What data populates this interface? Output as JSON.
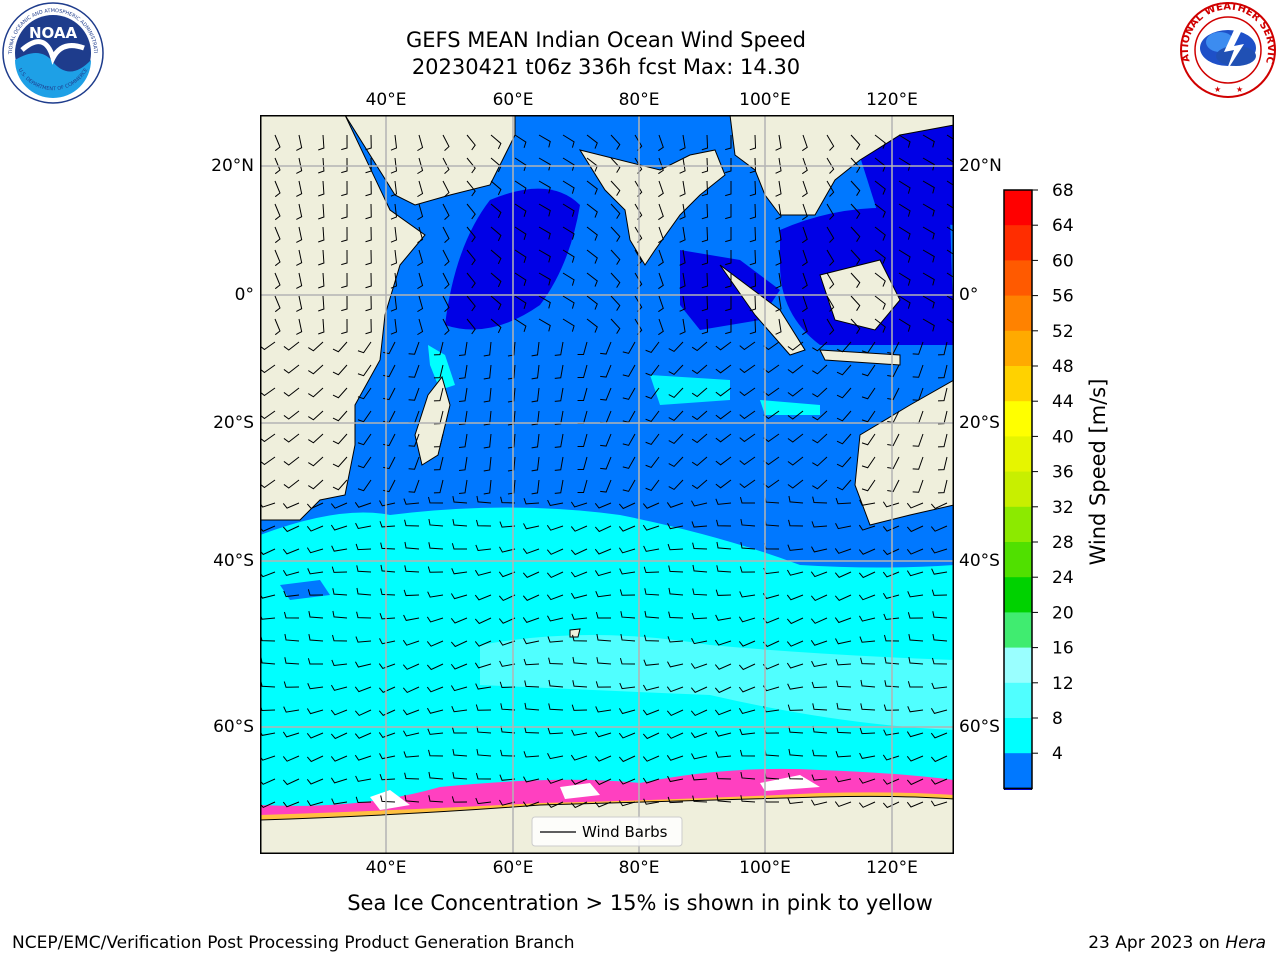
{
  "title": {
    "line1": "GEFS MEAN Indian Ocean Wind Speed",
    "line2": "20230421 t06z 336h fcst   Max: 14.30"
  },
  "map": {
    "top_lon_labels": [
      "40°E",
      "60°E",
      "80°E",
      "100°E",
      "120°E"
    ],
    "bottom_lon_labels": [
      "40°E",
      "60°E",
      "80°E",
      "100°E",
      "120°E"
    ],
    "left_lat_labels": [
      "20°N",
      "0°",
      "20°S",
      "40°S",
      "60°S"
    ],
    "right_lat_labels": [
      "20°N",
      "0°",
      "20°S",
      "40°S",
      "60°S"
    ],
    "legend_label": "Wind Barbs"
  },
  "colorbar": {
    "label": "Wind Speed [m/s]",
    "ticks": [
      "68",
      "64",
      "60",
      "56",
      "52",
      "48",
      "44",
      "40",
      "36",
      "32",
      "28",
      "24",
      "20",
      "16",
      "12",
      "8",
      "4"
    ],
    "colors": [
      "#ff0000",
      "#ff2d00",
      "#ff5a00",
      "#ff8200",
      "#ffaa00",
      "#ffd200",
      "#ffff00",
      "#e6f500",
      "#c8ef00",
      "#8cea00",
      "#50e000",
      "#00d200",
      "#40ec70",
      "#9affff",
      "#50ffff",
      "#00ffff",
      "#0078ff"
    ],
    "under_color": "#0000e6"
  },
  "note": "Sea Ice Concentration > 15% is shown in pink to yellow",
  "footer": {
    "left": "NCEP/EMC/Verification Post Processing Product Generation Branch",
    "right_date": "23 Apr 2023 on ",
    "right_host": "Hera"
  },
  "logos": {
    "noaa": "NOAA",
    "noaa_ring_top": "NATIONAL OCEANIC AND ATMOSPHERIC ADMINISTRATION",
    "noaa_ring_bottom": "U.S. DEPARTMENT OF COMMERCE",
    "nws_ring_top": "NATIONAL WEATHER SERVICE"
  },
  "colors": {
    "land": "#efefdc",
    "ocean_dark": "#0000e6",
    "ocean_blue": "#0078ff",
    "ocean_cyan": "#00ffff",
    "ocean_lightcyan": "#50ffff",
    "ice_pink": "#ff40c0",
    "ice_yellow": "#ffc040"
  }
}
